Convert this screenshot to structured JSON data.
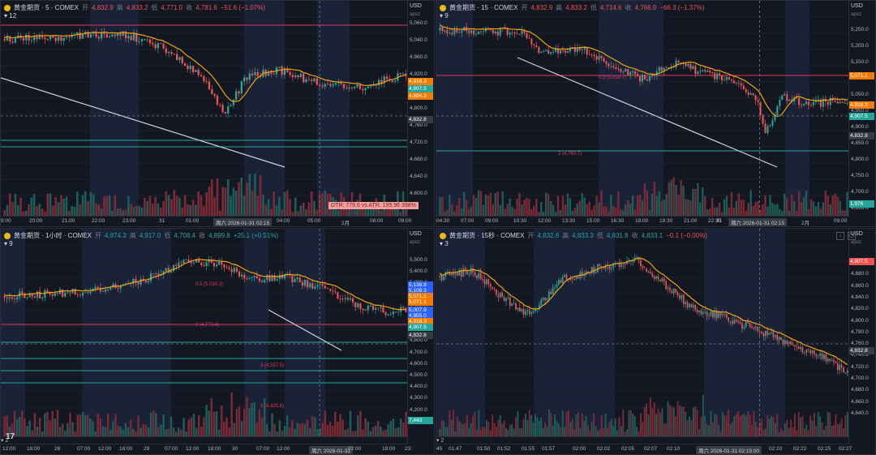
{
  "panes": [
    {
      "id": "p5m",
      "symbol": "黄金期货 · 5 · COMEX",
      "stats": [
        [
          "开",
          "4,832.9"
        ],
        [
          "高",
          "4,833.2"
        ],
        [
          "低",
          "4,771.0"
        ],
        [
          "收",
          "4,781.6"
        ]
      ],
      "change": "−51.6 (−1.07%)",
      "sub": "12",
      "currency": "USD",
      "apoz": "apoz",
      "price_ticks": [
        "5,060.0",
        "5,040.0",
        "4,960.0",
        "4,920.0",
        "4,880.0",
        "4,800.0",
        "4,760.0",
        "4,720.0",
        "4,680.0",
        "4,640.0",
        "4,600.0"
      ],
      "tags": [
        {
          "text": "4,918.3",
          "color": "#f57c00"
        },
        {
          "text": "4,907.5",
          "color": "#26a69a"
        },
        {
          "text": "4,894.3",
          "color": "#f57c00"
        },
        {
          "text": "4,832.8",
          "color": "#363a45"
        }
      ],
      "time_ticks": [
        "9:00",
        "20:00",
        "21:00",
        "22:00",
        "23:00",
        "31",
        "01:00",
        "周六 2026-01-31 02:15",
        "04:00",
        "05:00",
        "2月",
        "08:00",
        "09:00"
      ],
      "dtr": "DTR: 779.6 vs ATR: 195.96 398%"
    },
    {
      "id": "p15m",
      "symbol": "黄金期货 · 15 · COMEX",
      "stats": [
        [
          "开",
          "4,832.9"
        ],
        [
          "高",
          "4,833.2"
        ],
        [
          "低",
          "4,714.6"
        ],
        [
          "收",
          "4,766.9"
        ]
      ],
      "change": "−66.3 (−1.37%)",
      "sub": "9",
      "currency": "USD",
      "apoz": "apoz",
      "price_ticks": [
        "5,250.0",
        "5,200.0",
        "5,150.0",
        "5,100.0",
        "5,050.0",
        "4,950.0",
        "4,900.0",
        "4,850.0",
        "4,800.0",
        "4,750.0",
        "4,700.0",
        "4,650.0"
      ],
      "tags": [
        {
          "text": "5,071.1",
          "color": "#f57c00"
        },
        {
          "text": "4,918.3",
          "color": "#f57c00"
        },
        {
          "text": "4,907.5",
          "color": "#26a69a"
        },
        {
          "text": "4,832.8",
          "color": "#363a45"
        },
        {
          "text": "1,976",
          "color": "#26a69a"
        }
      ],
      "time_ticks": [
        "04:30",
        "07:00",
        "09:00",
        "10:30",
        "12:00",
        "13:30",
        "15:00",
        "16:30",
        "18:00",
        "19:30",
        "21:00",
        "22:30",
        "31",
        "周六 2026-01-31 02:15",
        "2月",
        "09:00"
      ],
      "annotations": [
        "0.5 (5,059.7)",
        "2 (4,760.7)"
      ]
    },
    {
      "id": "p1h",
      "symbol": "黄金期货 · 1小时 · COMEX",
      "stats": [
        [
          "开",
          "4,874.3"
        ],
        [
          "高",
          "4,917.0"
        ],
        [
          "低",
          "4,708.4"
        ],
        [
          "收",
          "4,899.8"
        ]
      ],
      "change": "+25.1 (+0.51%)",
      "sub": "9",
      "currency": "USD",
      "apoz": "apoz",
      "price_ticks": [
        "5,500.0",
        "5,400.0",
        "5,300.0",
        "5,200.0",
        "5,100.0",
        "5,000.0",
        "4,900.0",
        "4,800.0",
        "4,700.0",
        "4,600.0",
        "4,500.0",
        "4,400.0",
        "4,300.0",
        "4,200.0"
      ],
      "tags": [
        {
          "text": "5,138.9",
          "color": "#2962ff"
        },
        {
          "text": "5,108.3",
          "color": "#2962ff"
        },
        {
          "text": "5,071.1",
          "color": "#f57c00"
        },
        {
          "text": "5,071.1",
          "color": "#f57c00"
        },
        {
          "text": "5,007.9",
          "color": "#2962ff"
        },
        {
          "text": "4,955.0",
          "color": "#2962ff"
        },
        {
          "text": "4,918.3",
          "color": "#f57c00"
        },
        {
          "text": "4,907.5",
          "color": "#26a69a"
        },
        {
          "text": "4,832.8",
          "color": "#363a45"
        },
        {
          "text": "7,443",
          "color": "#26a69a"
        }
      ],
      "time_ticks": [
        "12:00",
        "18:00",
        "28",
        "07:00",
        "12:00",
        "18:00",
        "29",
        "07:00",
        "12:00",
        "18:00",
        "30",
        "07:00",
        "12:00",
        "周六 2026-01-31",
        "02:00",
        "18:00",
        "23:"
      ],
      "annotations": [
        "0.5 (5,020.2)",
        "2 (4,773.4)",
        "3 (4,557.5)",
        "3 (4,420.8)"
      ],
      "bottom_label": "2"
    },
    {
      "id": "p15s",
      "symbol": "黄金期货 · 15秒 · COMEX",
      "stats": [
        [
          "开",
          "4,832.8"
        ],
        [
          "高",
          "4,833.3"
        ],
        [
          "低",
          "4,831.8"
        ],
        [
          "收",
          "4,833.1"
        ]
      ],
      "change": "−0.1 (−0.00%)",
      "sub": "3",
      "currency": "USD",
      "apoz": "apoz",
      "price_ticks": [
        "4,900.0",
        "4,880.0",
        "4,860.0",
        "4,840.0",
        "4,820.0",
        "4,800.0",
        "4,780.0",
        "4,760.0",
        "4,740.0",
        "4,720.0",
        "4,700.0",
        "4,680.0",
        "4,660.0",
        "4,640.0"
      ],
      "tags": [
        {
          "text": "4,907.5",
          "color": "#ef5350"
        },
        {
          "text": "4,832.8",
          "color": "#363a45"
        }
      ],
      "time_ticks": [
        "45",
        "01:47",
        "01:50",
        "01:52",
        "01:55",
        "01:57",
        "02:00",
        "02:02",
        "02:05",
        "02:07",
        "02:10",
        "周六 2026-01-31 02:15:00",
        "02:20",
        "02:22",
        "02:25",
        "02:27"
      ],
      "bottom_label": "2"
    }
  ],
  "tv_logo": "17"
}
